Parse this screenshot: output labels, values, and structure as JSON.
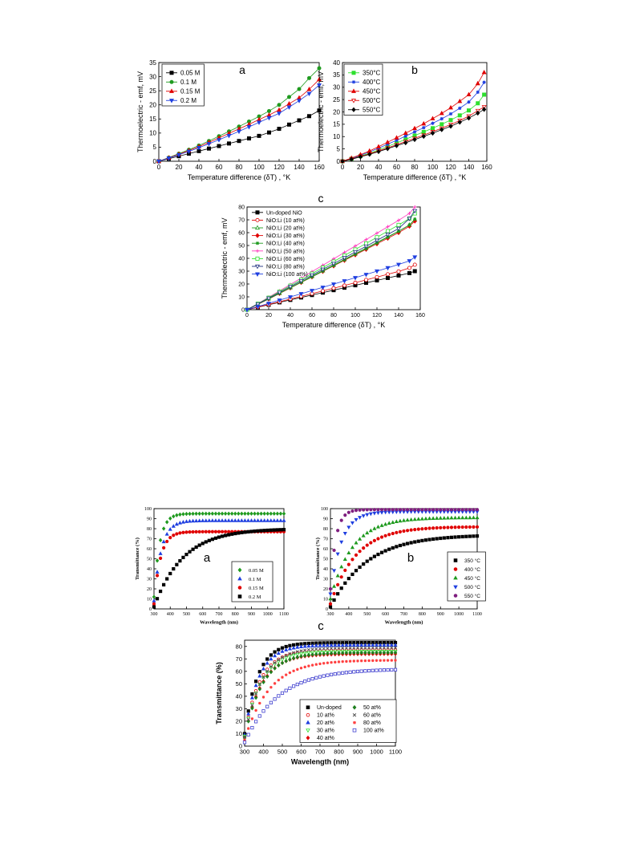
{
  "figures": [
    {
      "ticks_font": "sans"
    }
  ],
  "chart_data": [
    {
      "id": "thermo_a",
      "type": "line",
      "panel_label": "a",
      "xlabel": "Temperature difference (δT) , °K",
      "ylabel": "Thermoelectric - emf, mV",
      "xlim": [
        0,
        160
      ],
      "ylim": [
        0,
        35
      ],
      "xticks": [
        0,
        20,
        40,
        60,
        80,
        100,
        120,
        140,
        160
      ],
      "yticks": [
        0,
        5,
        10,
        15,
        20,
        25,
        30,
        35
      ],
      "legend_position": "top-left",
      "x": [
        0,
        10,
        20,
        30,
        40,
        50,
        60,
        70,
        80,
        90,
        100,
        110,
        120,
        130,
        140,
        150,
        160
      ],
      "series": [
        {
          "name": "0.05 M",
          "color": "#000000",
          "marker": "square-filled",
          "values": [
            0,
            0.9,
            1.8,
            2.7,
            3.6,
            4.5,
            5.4,
            6.3,
            7.2,
            8.1,
            9.0,
            10.2,
            11.5,
            13.0,
            14.5,
            16.0,
            18.0
          ]
        },
        {
          "name": "0.1 M",
          "color": "#1f9a1f",
          "marker": "circle-filled",
          "values": [
            0,
            1.3,
            2.7,
            4.1,
            5.6,
            7.2,
            8.9,
            10.6,
            12.3,
            14.1,
            15.9,
            17.8,
            20.0,
            22.8,
            25.6,
            29.5,
            33.0
          ]
        },
        {
          "name": "0.15 M",
          "color": "#e00000",
          "marker": "triangle-up-filled",
          "values": [
            0,
            1.2,
            2.5,
            3.8,
            5.2,
            6.7,
            8.3,
            9.9,
            11.5,
            13.1,
            14.8,
            16.4,
            18.2,
            20.4,
            22.5,
            25.5,
            29.0
          ]
        },
        {
          "name": "0.2 M",
          "color": "#1f3fe0",
          "marker": "triangle-down-filled",
          "values": [
            0,
            1.1,
            2.3,
            3.5,
            4.8,
            6.2,
            7.6,
            9.1,
            10.6,
            12.2,
            13.8,
            15.4,
            17.0,
            19.2,
            21.5,
            24.0,
            27.0
          ]
        }
      ]
    },
    {
      "id": "thermo_b",
      "type": "line",
      "panel_label": "b",
      "xlabel": "Temperature difference (δT) , °K",
      "ylabel": "Thermoelectric - emf, mV",
      "xlim": [
        0,
        160
      ],
      "ylim": [
        0,
        40
      ],
      "xticks": [
        0,
        20,
        40,
        60,
        80,
        100,
        120,
        140,
        160
      ],
      "yticks": [
        0,
        5,
        10,
        15,
        20,
        25,
        30,
        35,
        40
      ],
      "legend_position": "top-left",
      "x": [
        0,
        10,
        20,
        30,
        40,
        50,
        60,
        70,
        80,
        90,
        100,
        110,
        120,
        130,
        140,
        150,
        157
      ],
      "series": [
        {
          "name": "350°C",
          "color": "#2ee02e",
          "marker": "square-filled",
          "values": [
            0,
            1.0,
            2.1,
            3.3,
            4.6,
            6.0,
            7.4,
            8.9,
            10.4,
            11.9,
            13.4,
            15.0,
            16.7,
            18.6,
            20.6,
            23.5,
            27.0
          ]
        },
        {
          "name": "400°C",
          "color": "#1f3fe0",
          "marker": "star",
          "values": [
            0,
            1.1,
            2.4,
            3.8,
            5.3,
            6.9,
            8.5,
            10.2,
            11.9,
            13.6,
            15.4,
            17.2,
            19.2,
            21.5,
            24.0,
            28.0,
            32.0
          ]
        },
        {
          "name": "450°C",
          "color": "#e00000",
          "marker": "triangle-up-filled",
          "values": [
            0,
            1.3,
            2.7,
            4.2,
            5.9,
            7.7,
            9.5,
            11.4,
            13.3,
            15.2,
            17.3,
            19.4,
            21.7,
            24.3,
            27.0,
            31.5,
            36.0
          ]
        },
        {
          "name": "500°C",
          "color": "#e00000",
          "marker": "triangle-down-open",
          "values": [
            0,
            0.9,
            1.9,
            3.0,
            4.2,
            5.4,
            6.7,
            8.0,
            9.3,
            10.6,
            12.0,
            13.4,
            14.9,
            16.5,
            18.3,
            20.5,
            22.0
          ]
        },
        {
          "name": "550°C",
          "color": "#000000",
          "marker": "diamond-filled",
          "values": [
            0,
            0.8,
            1.8,
            2.8,
            3.9,
            5.1,
            6.3,
            7.5,
            8.8,
            10.1,
            11.4,
            12.8,
            14.2,
            15.8,
            17.5,
            19.5,
            21.0
          ]
        }
      ]
    },
    {
      "id": "thermo_c",
      "type": "line",
      "panel_label": "c",
      "xlabel": "Temperature difference (δT) , °K",
      "ylabel": "Thermoelectric - emf, mV",
      "xlim": [
        0,
        160
      ],
      "ylim": [
        0,
        80
      ],
      "xticks": [
        0,
        20,
        40,
        60,
        80,
        100,
        120,
        140,
        160
      ],
      "yticks": [
        0,
        10,
        20,
        30,
        40,
        50,
        60,
        70,
        80
      ],
      "legend_position": "top-left",
      "x": [
        0,
        10,
        20,
        30,
        40,
        50,
        60,
        70,
        80,
        90,
        100,
        110,
        120,
        130,
        140,
        150,
        155
      ],
      "series": [
        {
          "name": "Un-doped NiO",
          "color": "#000000",
          "marker": "square-filled",
          "values": [
            0,
            1.9,
            3.8,
            5.7,
            7.6,
            9.5,
            11.4,
            13.3,
            15.2,
            17.1,
            19.0,
            20.9,
            22.8,
            24.7,
            26.6,
            28.5,
            30.0
          ]
        },
        {
          "name": "NiO:Li (10 at%)",
          "color": "#e00000",
          "marker": "circle-open",
          "values": [
            0,
            2.0,
            4.1,
            6.2,
            8.3,
            10.4,
            12.5,
            14.6,
            16.7,
            18.8,
            21.0,
            23.2,
            25.4,
            27.6,
            29.8,
            32.5,
            35.0
          ]
        },
        {
          "name": "NiO:Li (20 at%)",
          "color": "#1f9a1f",
          "marker": "triangle-up-open",
          "values": [
            0,
            4.2,
            8.5,
            12.8,
            17.2,
            21.6,
            26.0,
            30.4,
            34.8,
            39.2,
            43.6,
            48.0,
            52.4,
            56.8,
            61.2,
            66.0,
            70.0
          ]
        },
        {
          "name": "NiO:Li (30 at%)",
          "color": "#e00000",
          "marker": "diamond-filled",
          "values": [
            0,
            4.1,
            8.3,
            12.6,
            16.9,
            21.2,
            25.5,
            29.8,
            34.1,
            38.4,
            42.7,
            47.0,
            51.3,
            55.6,
            60.0,
            65.0,
            69.0
          ]
        },
        {
          "name": "NiO:Li (40 at%)",
          "color": "#1f9a1f",
          "marker": "star",
          "values": [
            0,
            4.2,
            8.4,
            12.7,
            17.0,
            21.3,
            25.6,
            30.0,
            34.4,
            38.8,
            43.2,
            47.6,
            52.0,
            56.5,
            61.0,
            66.0,
            70.5
          ]
        },
        {
          "name": "NiO:Li (50 at%)",
          "color": "#ff3fbf",
          "marker": "plus",
          "values": [
            0,
            4.8,
            9.7,
            14.6,
            19.6,
            24.6,
            29.6,
            34.6,
            39.6,
            44.6,
            49.6,
            54.6,
            59.6,
            64.6,
            69.6,
            75.0,
            80.0
          ]
        },
        {
          "name": "NiO:Li (60 at%)",
          "color": "#2ee02e",
          "marker": "square-open",
          "values": [
            0,
            4.6,
            9.3,
            14.0,
            18.7,
            23.4,
            28.1,
            32.8,
            37.5,
            42.2,
            46.9,
            51.6,
            56.4,
            61.2,
            66.0,
            71.0,
            75.0
          ]
        },
        {
          "name": "NiO:Li (80 at%)",
          "color": "#1f2f7f",
          "marker": "triangle-down-open",
          "values": [
            0,
            4.4,
            8.9,
            13.4,
            17.9,
            22.4,
            26.9,
            31.4,
            35.9,
            40.4,
            44.9,
            49.4,
            54.0,
            58.6,
            63.2,
            71.0,
            77.0
          ]
        },
        {
          "name": "NiO:Li (100 at%)",
          "color": "#1f3fe0",
          "marker": "triangle-down-filled",
          "values": [
            0,
            2.4,
            4.9,
            7.4,
            9.9,
            12.4,
            14.9,
            17.4,
            19.9,
            22.4,
            24.9,
            27.4,
            30.0,
            32.6,
            35.2,
            38.0,
            41.0
          ]
        }
      ]
    },
    {
      "id": "trans_a",
      "type": "scatter",
      "panel_label": "a",
      "xlabel": "Wavelength (nm)",
      "ylabel": "Transmittance (%)",
      "xlim": [
        300,
        1100
      ],
      "ylim": [
        0,
        100
      ],
      "xticks": [
        300,
        400,
        500,
        600,
        700,
        800,
        900,
        1000,
        1100
      ],
      "yticks": [
        0,
        10,
        20,
        30,
        40,
        50,
        60,
        70,
        80,
        90,
        100
      ],
      "legend_position": "bottom-right",
      "legend_font": "serif",
      "model": "sat",
      "series": [
        {
          "name": "0.05 M",
          "color": "#1f9a1f",
          "marker": "diamond-filled",
          "sat": [
            12,
            95,
            35
          ]
        },
        {
          "name": "0.1  M",
          "color": "#1f3fe0",
          "marker": "triangle-up-filled",
          "sat": [
            8,
            88,
            45
          ]
        },
        {
          "name": "0.15  M",
          "color": "#e00000",
          "marker": "circle-filled",
          "sat": [
            5,
            77,
            40
          ]
        },
        {
          "name": "0.2  M",
          "color": "#000000",
          "marker": "square-filled",
          "sat": [
            2,
            80,
            180
          ]
        }
      ]
    },
    {
      "id": "trans_b",
      "type": "scatter",
      "panel_label": "b",
      "xlabel": "Wavelength (nm)",
      "ylabel": "Transmittance (%)",
      "xlim": [
        300,
        1100
      ],
      "ylim": [
        0,
        100
      ],
      "xticks": [
        300,
        400,
        500,
        600,
        700,
        800,
        900,
        1000,
        1100
      ],
      "yticks": [
        0,
        10,
        20,
        30,
        40,
        50,
        60,
        70,
        80,
        90,
        100
      ],
      "legend_position": "bottom-right",
      "model": "sat",
      "series": [
        {
          "name": "350 °C",
          "color": "#000000",
          "marker": "square-filled",
          "sat": [
            2,
            74,
            200
          ]
        },
        {
          "name": "400 °C",
          "color": "#e00000",
          "marker": "circle-filled",
          "sat": [
            5,
            82,
            140
          ]
        },
        {
          "name": "450 °C",
          "color": "#1f9a1f",
          "marker": "triangle-up-filled",
          "sat": [
            10,
            91,
            120
          ]
        },
        {
          "name": "500 °C",
          "color": "#1f3fe0",
          "marker": "triangle-down-filled",
          "sat": [
            15,
            97,
            60
          ]
        },
        {
          "name": "550 °C",
          "color": "#7f1f7f",
          "marker": "circle-filled",
          "sat": [
            20,
            99,
            30
          ]
        }
      ]
    },
    {
      "id": "trans_c",
      "type": "scatter",
      "panel_label": "c",
      "xlabel": "Wavelength (nm)",
      "ylabel": "Transmittance (%)",
      "xlim": [
        300,
        1100
      ],
      "ylim": [
        0,
        85
      ],
      "xticks": [
        300,
        400,
        500,
        600,
        700,
        800,
        900,
        1000,
        1100
      ],
      "yticks": [
        0,
        10,
        20,
        30,
        40,
        50,
        60,
        70,
        80
      ],
      "legend_position": "bottom-right",
      "legend_columns": 2,
      "model": "sat",
      "series": [
        {
          "name": "Un-doped",
          "color": "#000000",
          "marker": "square-filled",
          "sat": [
            10,
            83,
            70
          ]
        },
        {
          "name": "10 at%",
          "color": "#e00000",
          "marker": "circle-open",
          "sat": [
            8,
            77,
            80
          ]
        },
        {
          "name": "20 at%",
          "color": "#1f3fe0",
          "marker": "triangle-up-filled",
          "sat": [
            9,
            81,
            75
          ]
        },
        {
          "name": "30 at%",
          "color": "#2ee02e",
          "marker": "triangle-down-open",
          "sat": [
            8,
            76,
            85
          ]
        },
        {
          "name": "40 at%",
          "color": "#e00000",
          "marker": "diamond-filled",
          "sat": [
            7,
            74,
            90
          ]
        },
        {
          "name": "50 at%",
          "color": "#1f7f1f",
          "marker": "diamond-filled",
          "sat": [
            7,
            75,
            95
          ]
        },
        {
          "name": "60 at%",
          "color": "#555555",
          "marker": "x",
          "sat": [
            7,
            79,
            90
          ]
        },
        {
          "name": "80 at%",
          "color": "#ff3f3f",
          "marker": "star",
          "sat": [
            5,
            69,
            130
          ]
        },
        {
          "name": "100 at%",
          "color": "#3f3fcf",
          "marker": "square-open",
          "sat": [
            3,
            62,
            180
          ]
        }
      ]
    }
  ]
}
